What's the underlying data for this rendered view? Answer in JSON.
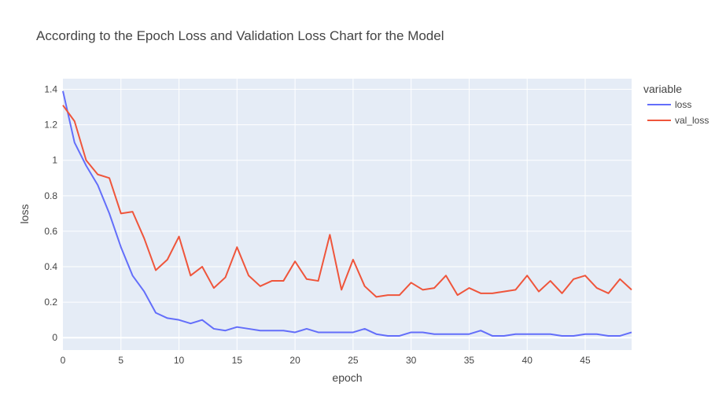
{
  "chart_data": {
    "type": "line",
    "title": "According to the Epoch Loss and Validation Loss Chart for the Model",
    "xlabel": "epoch",
    "ylabel": "loss",
    "xlim": [
      0,
      49
    ],
    "ylim": [
      -0.07,
      1.46
    ],
    "xticks": [
      0,
      5,
      10,
      15,
      20,
      25,
      30,
      35,
      40,
      45
    ],
    "yticks": [
      0,
      0.2,
      0.4,
      0.6,
      0.8,
      1,
      1.2,
      1.4
    ],
    "ytick_labels": [
      "0",
      "0.2",
      "0.4",
      "0.6",
      "0.8",
      "1",
      "1.2",
      "1.4"
    ],
    "grid": true,
    "legend": {
      "title": "variable",
      "placement": "top-right"
    },
    "x": [
      0,
      1,
      2,
      3,
      4,
      5,
      6,
      7,
      8,
      9,
      10,
      11,
      12,
      13,
      14,
      15,
      16,
      17,
      18,
      19,
      20,
      21,
      22,
      23,
      24,
      25,
      26,
      27,
      28,
      29,
      30,
      31,
      32,
      33,
      34,
      35,
      36,
      37,
      38,
      39,
      40,
      41,
      42,
      43,
      44,
      45,
      46,
      47,
      48,
      49
    ],
    "series": [
      {
        "name": "loss",
        "color": "#636efa",
        "values": [
          1.39,
          1.1,
          0.97,
          0.86,
          0.7,
          0.51,
          0.35,
          0.26,
          0.14,
          0.11,
          0.1,
          0.08,
          0.1,
          0.05,
          0.04,
          0.06,
          0.05,
          0.04,
          0.04,
          0.04,
          0.03,
          0.05,
          0.03,
          0.03,
          0.03,
          0.03,
          0.05,
          0.02,
          0.01,
          0.01,
          0.03,
          0.03,
          0.02,
          0.02,
          0.02,
          0.02,
          0.04,
          0.01,
          0.01,
          0.02,
          0.02,
          0.02,
          0.02,
          0.01,
          0.01,
          0.02,
          0.02,
          0.01,
          0.01,
          0.03
        ]
      },
      {
        "name": "val_loss",
        "color": "#ef553b",
        "values": [
          1.31,
          1.22,
          1.0,
          0.92,
          0.9,
          0.7,
          0.71,
          0.56,
          0.38,
          0.44,
          0.57,
          0.35,
          0.4,
          0.28,
          0.34,
          0.51,
          0.35,
          0.29,
          0.32,
          0.32,
          0.43,
          0.33,
          0.32,
          0.58,
          0.27,
          0.44,
          0.29,
          0.23,
          0.24,
          0.24,
          0.31,
          0.27,
          0.28,
          0.35,
          0.24,
          0.28,
          0.25,
          0.25,
          0.26,
          0.27,
          0.35,
          0.26,
          0.32,
          0.25,
          0.33,
          0.35,
          0.28,
          0.25,
          0.33,
          0.27
        ]
      }
    ]
  }
}
